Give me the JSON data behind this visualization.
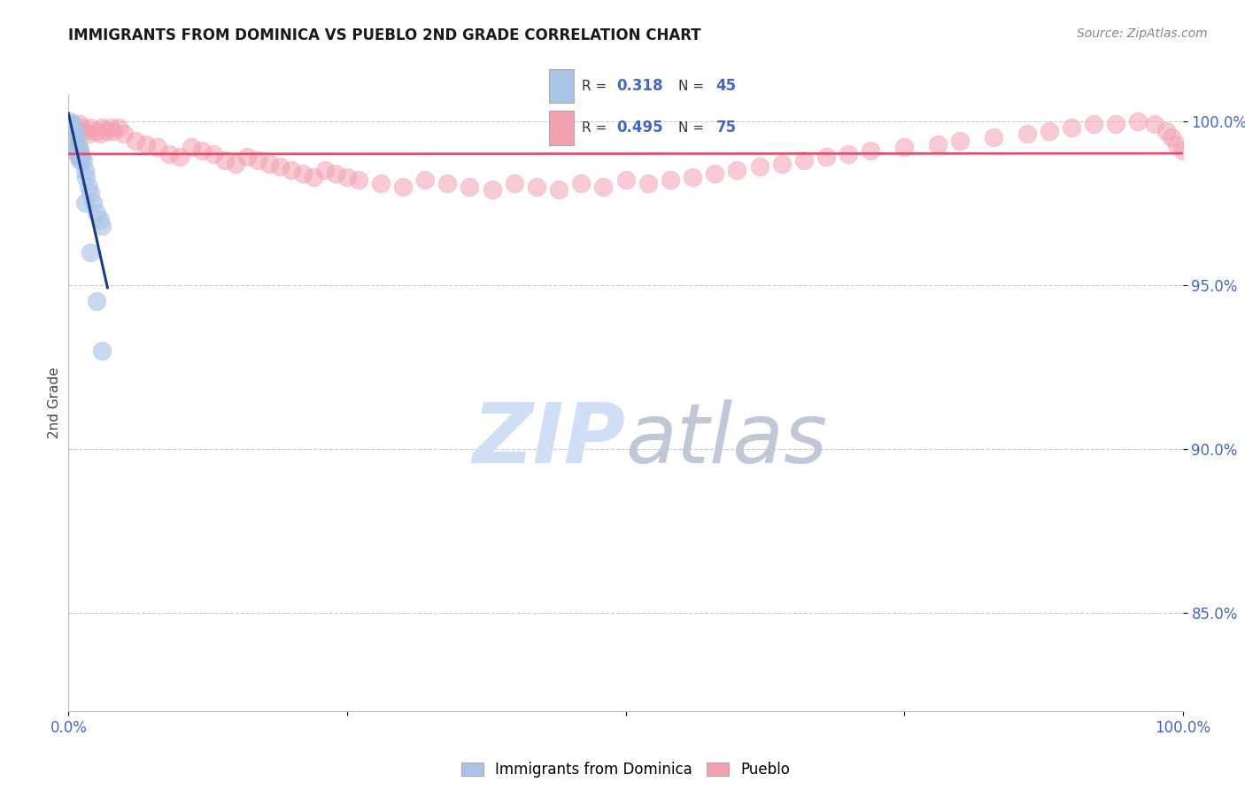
{
  "title": "IMMIGRANTS FROM DOMINICA VS PUEBLO 2ND GRADE CORRELATION CHART",
  "source": "Source: ZipAtlas.com",
  "ylabel": "2nd Grade",
  "blue_label": "Immigrants from Dominica",
  "pink_label": "Pueblo",
  "blue_R": 0.318,
  "blue_N": 45,
  "pink_R": 0.495,
  "pink_N": 75,
  "blue_color": "#aac4e8",
  "pink_color": "#f4a0b0",
  "blue_line_color": "#1a3a8a",
  "pink_line_color": "#e05070",
  "title_color": "#1a1a1a",
  "source_color": "#888888",
  "axis_label_color": "#4466cc",
  "watermark_zip_color": "#d0dff5",
  "watermark_atlas_color": "#c0c8d8",
  "grid_color": "#cccccc",
  "blue_x": [
    0.001,
    0.001,
    0.001,
    0.001,
    0.001,
    0.002,
    0.002,
    0.002,
    0.002,
    0.003,
    0.003,
    0.003,
    0.003,
    0.004,
    0.005,
    0.005,
    0.006,
    0.006,
    0.007,
    0.008,
    0.009,
    0.01,
    0.011,
    0.012,
    0.013,
    0.015,
    0.016,
    0.018,
    0.02,
    0.022,
    0.025,
    0.028,
    0.03,
    0.003,
    0.004,
    0.005,
    0.006,
    0.007,
    0.008,
    0.009,
    0.01,
    0.015,
    0.02,
    0.025,
    0.03
  ],
  "blue_y": [
    1.0,
    0.999,
    0.998,
    0.997,
    0.996,
    0.999,
    0.998,
    0.997,
    0.996,
    0.999,
    0.998,
    0.997,
    0.996,
    0.997,
    0.997,
    0.996,
    0.996,
    0.995,
    0.994,
    0.993,
    0.992,
    0.991,
    0.99,
    0.989,
    0.988,
    0.985,
    0.983,
    0.98,
    0.978,
    0.975,
    0.972,
    0.97,
    0.968,
    0.995,
    0.994,
    0.993,
    0.992,
    0.991,
    0.99,
    0.989,
    0.988,
    0.975,
    0.96,
    0.945,
    0.93
  ],
  "pink_x": [
    0.003,
    0.005,
    0.008,
    0.01,
    0.012,
    0.015,
    0.018,
    0.02,
    0.025,
    0.028,
    0.03,
    0.035,
    0.038,
    0.04,
    0.045,
    0.05,
    0.06,
    0.07,
    0.08,
    0.09,
    0.1,
    0.11,
    0.12,
    0.13,
    0.14,
    0.15,
    0.16,
    0.17,
    0.18,
    0.19,
    0.2,
    0.21,
    0.22,
    0.23,
    0.24,
    0.25,
    0.26,
    0.28,
    0.3,
    0.32,
    0.34,
    0.36,
    0.38,
    0.4,
    0.42,
    0.44,
    0.46,
    0.48,
    0.5,
    0.52,
    0.54,
    0.56,
    0.58,
    0.6,
    0.62,
    0.64,
    0.66,
    0.68,
    0.7,
    0.72,
    0.75,
    0.78,
    0.8,
    0.83,
    0.86,
    0.88,
    0.9,
    0.92,
    0.94,
    0.96,
    0.975,
    0.985,
    0.99,
    0.995,
    1.0
  ],
  "pink_y": [
    0.999,
    0.998,
    0.997,
    0.999,
    0.998,
    0.997,
    0.996,
    0.998,
    0.997,
    0.996,
    0.998,
    0.997,
    0.998,
    0.997,
    0.998,
    0.996,
    0.994,
    0.993,
    0.992,
    0.99,
    0.989,
    0.992,
    0.991,
    0.99,
    0.988,
    0.987,
    0.989,
    0.988,
    0.987,
    0.986,
    0.985,
    0.984,
    0.983,
    0.985,
    0.984,
    0.983,
    0.982,
    0.981,
    0.98,
    0.982,
    0.981,
    0.98,
    0.979,
    0.981,
    0.98,
    0.979,
    0.981,
    0.98,
    0.982,
    0.981,
    0.982,
    0.983,
    0.984,
    0.985,
    0.986,
    0.987,
    0.988,
    0.989,
    0.99,
    0.991,
    0.992,
    0.993,
    0.994,
    0.995,
    0.996,
    0.997,
    0.998,
    0.999,
    0.999,
    1.0,
    0.999,
    0.997,
    0.995,
    0.993,
    0.991
  ],
  "xlim": [
    0.0,
    1.0
  ],
  "ylim": [
    0.82,
    1.008
  ],
  "yticks": [
    0.85,
    0.9,
    0.95,
    1.0
  ],
  "ytick_labels": [
    "85.0%",
    "90.0%",
    "95.0%",
    "100.0%"
  ],
  "xtick_positions": [
    0.0,
    0.25,
    0.5,
    0.75,
    1.0
  ],
  "xtick_labels": [
    "0.0%",
    "",
    "",
    "",
    "100.0%"
  ],
  "marker_size": 220
}
